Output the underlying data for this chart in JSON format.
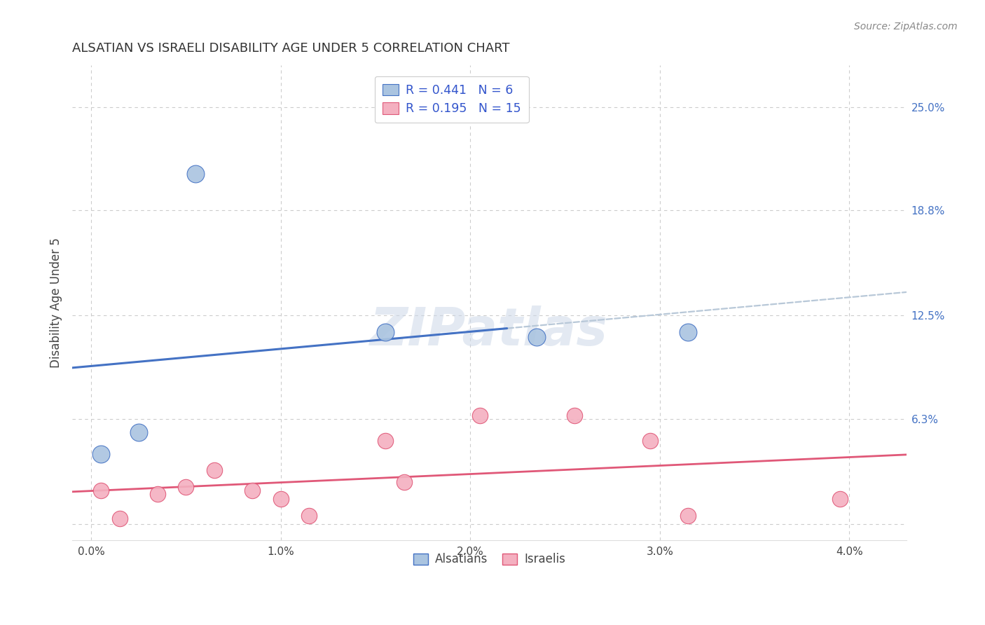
{
  "title": "ALSATIAN VS ISRAELI DISABILITY AGE UNDER 5 CORRELATION CHART",
  "source": "Source: ZipAtlas.com",
  "ylabel_label": "Disability Age Under 5",
  "x_tick_labels": [
    "0.0%",
    "1.0%",
    "2.0%",
    "3.0%",
    "4.0%"
  ],
  "y_tick_labels": [
    "",
    "6.3%",
    "12.5%",
    "18.8%",
    "25.0%"
  ],
  "xlim": [
    -0.1,
    4.3
  ],
  "ylim": [
    -1.0,
    27.5
  ],
  "alsatian_x": [
    0.05,
    0.25,
    0.55,
    1.55,
    2.35,
    3.15
  ],
  "alsatian_y": [
    4.2,
    5.5,
    21.0,
    11.5,
    11.2,
    11.5
  ],
  "israeli_x": [
    0.05,
    0.15,
    0.35,
    0.5,
    0.65,
    0.85,
    1.0,
    1.15,
    1.55,
    1.65,
    2.05,
    2.55,
    2.95,
    3.15,
    3.95
  ],
  "israeli_y": [
    2.0,
    0.3,
    1.8,
    2.2,
    3.2,
    2.0,
    1.5,
    0.5,
    5.0,
    2.5,
    6.5,
    6.5,
    5.0,
    0.5,
    1.5
  ],
  "alsatian_R": 0.441,
  "alsatian_N": 6,
  "israeli_R": 0.195,
  "israeli_N": 15,
  "alsatian_color": "#aac4e0",
  "alsatian_line_color": "#4472c4",
  "israeli_color": "#f4b0c0",
  "israeli_line_color": "#e05878",
  "trendline_dashed_color": "#b8c8d8",
  "watermark_text": "ZIPatlas",
  "watermark_color": "#ccd8e8",
  "background_color": "#ffffff",
  "grid_color": "#cccccc",
  "legend_text_color": "#3355cc",
  "bottom_legend_color": "#444444",
  "title_color": "#333333",
  "source_color": "#888888"
}
